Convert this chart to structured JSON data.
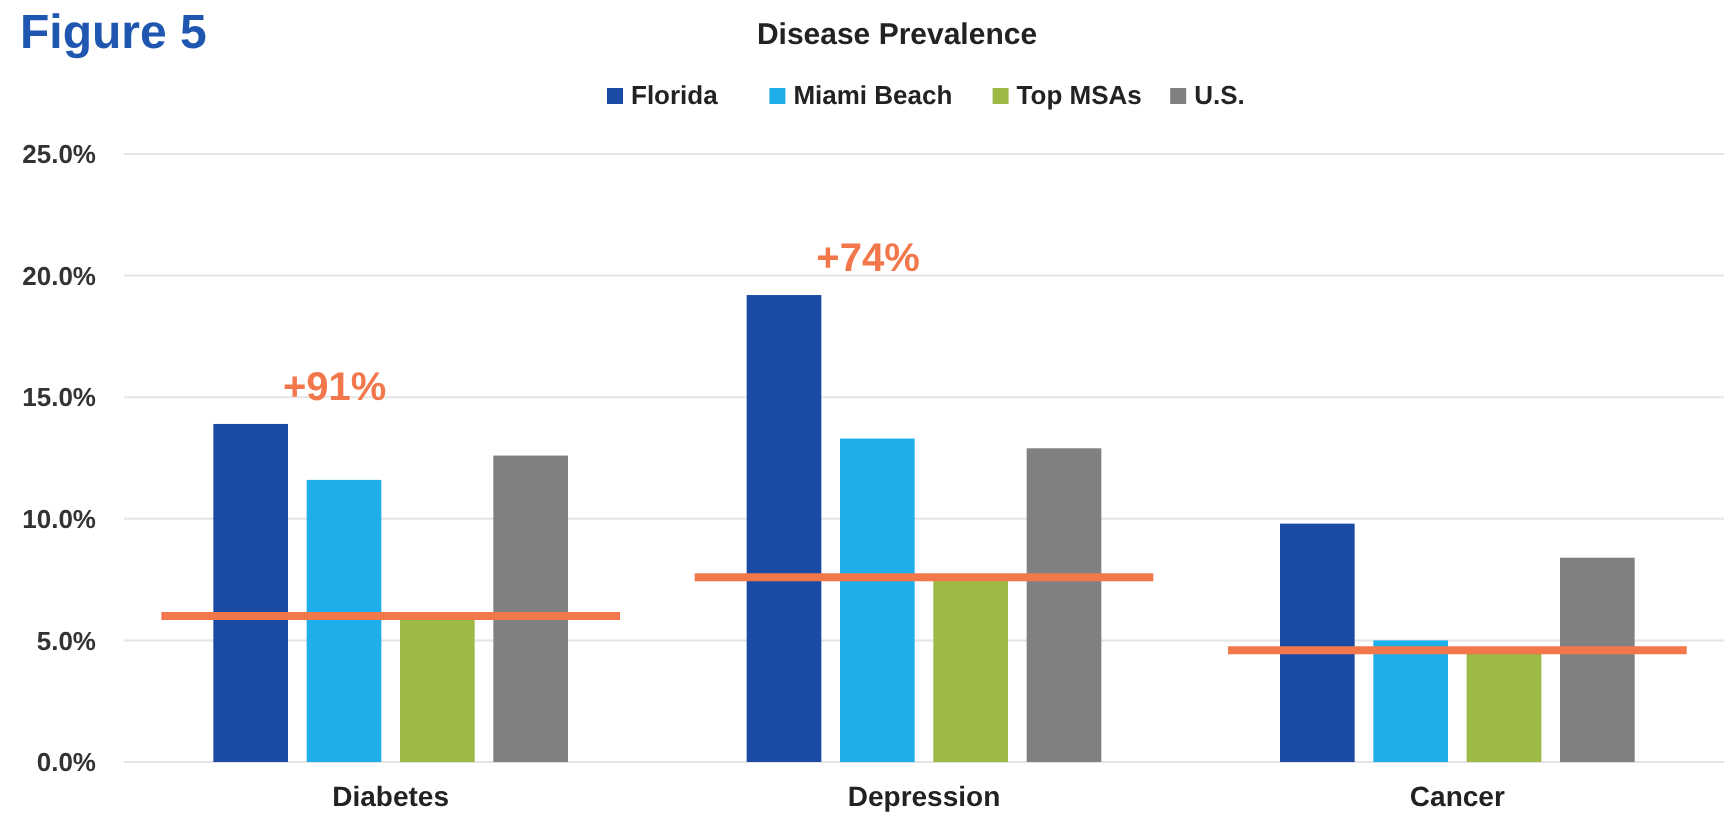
{
  "chart_data": {
    "type": "bar",
    "title": "Figure 5",
    "subtitle": "Disease Prevalence",
    "categories": [
      "Diabetes",
      "Depression",
      "Cancer"
    ],
    "series": [
      {
        "name": "Florida",
        "color": "#1a4aa3",
        "values": [
          13.9,
          19.2,
          9.8
        ]
      },
      {
        "name": "Miami Beach",
        "color": "#1eaeea",
        "values": [
          11.6,
          13.3,
          5.0
        ]
      },
      {
        "name": "Top MSAs",
        "color": "#9cba44",
        "values": [
          6.0,
          7.6,
          4.6
        ]
      },
      {
        "name": "U.S.",
        "color": "#808080",
        "values": [
          12.6,
          12.9,
          8.4
        ]
      }
    ],
    "ref_lines": [
      {
        "axis": "y",
        "value": 6.0,
        "color": "#f2784b"
      },
      {
        "axis": "y",
        "value": 7.6,
        "color": "#f2784b"
      },
      {
        "axis": "y",
        "value": 4.6,
        "color": "#f2784b"
      }
    ],
    "ylim": [
      0,
      25
    ],
    "yticks": [
      {
        "value": 0,
        "label": "0.0%"
      },
      {
        "value": 5,
        "label": "5.0%"
      },
      {
        "value": 10,
        "label": "10.0%"
      },
      {
        "value": 15,
        "label": "15.0%"
      },
      {
        "value": 20,
        "label": "20.0%"
      },
      {
        "value": 25,
        "label": "25.0%"
      }
    ],
    "grid": "y",
    "legend": "top",
    "annotations": [
      "+91%",
      "+74%"
    ]
  }
}
